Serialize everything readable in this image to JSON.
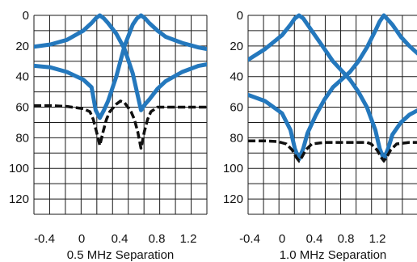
{
  "chart_data": [
    {
      "type": "line",
      "xlabel": "0.5 MHz Separation",
      "ylabel": "",
      "xlim": [
        -0.6,
        1.5
      ],
      "ylim": [
        0,
        130
      ],
      "y_inverted": true,
      "x_tick_labels": [
        "-0.4",
        "0",
        "0.4",
        "0.8",
        "1.2"
      ],
      "y_tick_labels": [
        "0",
        "20",
        "40",
        "60",
        "80",
        "100",
        "120"
      ],
      "grid": true,
      "series": [
        {
          "color": "#2478bd",
          "style": "solid",
          "x": [
            -0.6,
            -0.4,
            -0.2,
            0.0,
            0.1,
            0.15,
            0.2,
            0.25,
            0.3,
            0.4,
            0.5,
            0.6,
            0.65,
            0.7,
            0.75,
            0.8,
            0.9,
            1.0,
            1.2,
            1.4,
            1.5
          ],
          "y": [
            20.5,
            19,
            16,
            10,
            5,
            2,
            0,
            2,
            5,
            12,
            22,
            38,
            50,
            62,
            58,
            55,
            48,
            43,
            37,
            33,
            32
          ]
        },
        {
          "color": "#2478bd",
          "style": "solid",
          "x": [
            -0.6,
            -0.4,
            -0.2,
            0.0,
            0.1,
            0.15,
            0.2,
            0.25,
            0.3,
            0.4,
            0.5,
            0.6,
            0.65,
            0.7,
            0.75,
            0.8,
            0.9,
            1.0,
            1.2,
            1.4,
            1.5
          ],
          "y": [
            33,
            34,
            37,
            42,
            47,
            62,
            67,
            62,
            56,
            40,
            20,
            6,
            2,
            0,
            2,
            5,
            10,
            14,
            18,
            21,
            22
          ]
        },
        {
          "color": "#111111",
          "style": "dashed",
          "x": [
            -0.6,
            -0.4,
            -0.2,
            0.0,
            0.08,
            0.12,
            0.16,
            0.2,
            0.24,
            0.28,
            0.32,
            0.4,
            0.45,
            0.5,
            0.58,
            0.62,
            0.66,
            0.7,
            0.74,
            0.78,
            0.82,
            0.9,
            1.0,
            1.2,
            1.5
          ],
          "y": [
            59,
            59,
            59.5,
            61,
            63,
            68,
            76,
            85,
            76,
            68,
            63,
            58,
            56,
            57,
            63,
            68,
            76,
            87,
            76,
            68,
            63,
            60,
            60,
            60,
            60
          ]
        }
      ]
    },
    {
      "type": "line",
      "xlabel": "1.0 MHz Separation",
      "ylabel": "",
      "xlim": [
        -0.4,
        1.6
      ],
      "ylim": [
        0,
        130
      ],
      "y_inverted": true,
      "x_tick_labels": [
        "-0.4",
        "0",
        "0.4",
        "0.8",
        "1.2"
      ],
      "y_tick_labels": [
        "0",
        "20",
        "40",
        "60",
        "80",
        "100",
        "120"
      ],
      "grid": true,
      "series": [
        {
          "color": "#2478bd",
          "style": "solid",
          "x": [
            -0.4,
            -0.2,
            0.0,
            0.1,
            0.15,
            0.2,
            0.25,
            0.3,
            0.4,
            0.5,
            0.6,
            0.7,
            0.8,
            0.9,
            1.0,
            1.1,
            1.15,
            1.2,
            1.25,
            1.3,
            1.4,
            1.5,
            1.6
          ],
          "y": [
            29,
            22,
            13,
            6,
            2,
            0,
            2,
            6,
            14,
            22,
            30,
            36,
            42,
            50,
            60,
            75,
            87,
            94,
            87,
            78,
            70,
            65,
            62
          ]
        },
        {
          "color": "#2478bd",
          "style": "solid",
          "x": [
            -0.4,
            -0.2,
            0.0,
            0.1,
            0.15,
            0.2,
            0.25,
            0.3,
            0.4,
            0.5,
            0.6,
            0.7,
            0.8,
            0.9,
            1.0,
            1.1,
            1.15,
            1.2,
            1.25,
            1.3,
            1.4,
            1.5,
            1.6
          ],
          "y": [
            52,
            56,
            64,
            75,
            87,
            94,
            87,
            77,
            65,
            55,
            47,
            42,
            37,
            30,
            21,
            10,
            4,
            0,
            3,
            6,
            14,
            20,
            25
          ]
        },
        {
          "color": "#111111",
          "style": "dashed",
          "x": [
            -0.4,
            -0.2,
            -0.05,
            0.05,
            0.12,
            0.17,
            0.2,
            0.23,
            0.28,
            0.35,
            0.5,
            0.8,
            1.0,
            1.05,
            1.12,
            1.17,
            1.2,
            1.23,
            1.28,
            1.35,
            1.5,
            1.6
          ],
          "y": [
            82,
            82,
            82.5,
            84,
            88,
            93,
            95,
            93,
            88,
            84,
            83,
            83,
            83,
            84,
            88,
            93,
            95,
            93,
            88,
            84,
            83,
            83
          ]
        }
      ]
    }
  ]
}
